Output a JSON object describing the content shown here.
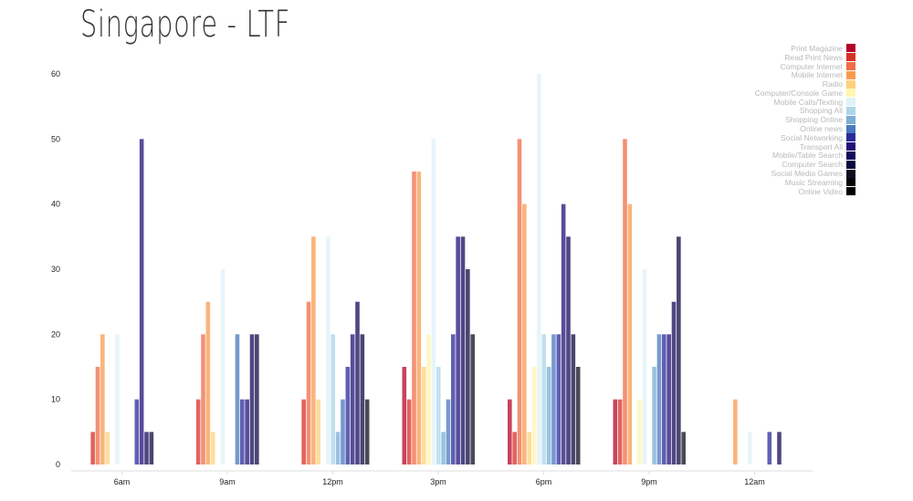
{
  "page": {
    "title": "Singapore - LTF"
  },
  "chart_data": {
    "type": "bar",
    "title": "Singapore - LTF",
    "xlabel": "",
    "ylabel": "",
    "ylim": [
      0,
      60
    ],
    "yticks": [
      0,
      10,
      20,
      30,
      40,
      50,
      60
    ],
    "grid": false,
    "legend_position": "top-right",
    "categories": [
      "6am",
      "9am",
      "12pm",
      "3pm",
      "6pm",
      "9pm",
      "12am"
    ],
    "series": [
      {
        "name": "Print Magazine",
        "color": "#b5042a",
        "values": [
          0,
          0,
          0,
          15,
          10,
          10,
          0
        ]
      },
      {
        "name": "Read Print News",
        "color": "#d73027",
        "values": [
          5,
          10,
          10,
          10,
          5,
          10,
          0
        ]
      },
      {
        "name": "Computer Internet",
        "color": "#f06c45",
        "values": [
          15,
          20,
          25,
          45,
          50,
          50,
          0
        ]
      },
      {
        "name": "Mobile Internet",
        "color": "#f99b4f",
        "values": [
          20,
          25,
          35,
          45,
          40,
          40,
          10
        ]
      },
      {
        "name": "Radio",
        "color": "#fdd17c",
        "values": [
          5,
          5,
          10,
          15,
          5,
          0,
          0
        ]
      },
      {
        "name": "Computer/Console Game",
        "color": "#fff6b0",
        "values": [
          0,
          0,
          0,
          20,
          15,
          10,
          0
        ]
      },
      {
        "name": "Mobile Calls/Texting",
        "color": "#dff2f8",
        "values": [
          20,
          30,
          35,
          50,
          60,
          30,
          5
        ]
      },
      {
        "name": "Shopping All",
        "color": "#acd5ea",
        "values": [
          0,
          0,
          20,
          15,
          20,
          0,
          0
        ]
      },
      {
        "name": "Shopping Online",
        "color": "#7aaed4",
        "values": [
          0,
          0,
          5,
          5,
          15,
          15,
          0
        ]
      },
      {
        "name": "Online news",
        "color": "#4a77bd",
        "values": [
          0,
          20,
          10,
          10,
          20,
          20,
          0
        ]
      },
      {
        "name": "Social Networking",
        "color": "#2b2b9a",
        "values": [
          10,
          10,
          15,
          20,
          20,
          20,
          5
        ]
      },
      {
        "name": "Transport All",
        "color": "#22107a",
        "values": [
          50,
          10,
          20,
          35,
          40,
          20,
          0
        ]
      },
      {
        "name": "Mobile/Table Search",
        "color": "#140a5c",
        "values": [
          5,
          20,
          25,
          35,
          35,
          25,
          5
        ]
      },
      {
        "name": "Computer Search",
        "color": "#0c0840",
        "values": [
          5,
          20,
          20,
          30,
          20,
          35,
          0
        ]
      },
      {
        "name": "Social Media Games",
        "color": "#0e0e1e",
        "values": [
          0,
          0,
          10,
          20,
          15,
          5,
          0
        ]
      },
      {
        "name": "Music Streaming",
        "color": "#050505",
        "values": [
          0,
          0,
          0,
          0,
          0,
          0,
          0
        ]
      },
      {
        "name": "Online Video",
        "color": "#000000",
        "values": [
          0,
          0,
          0,
          0,
          0,
          0,
          0
        ]
      }
    ]
  }
}
